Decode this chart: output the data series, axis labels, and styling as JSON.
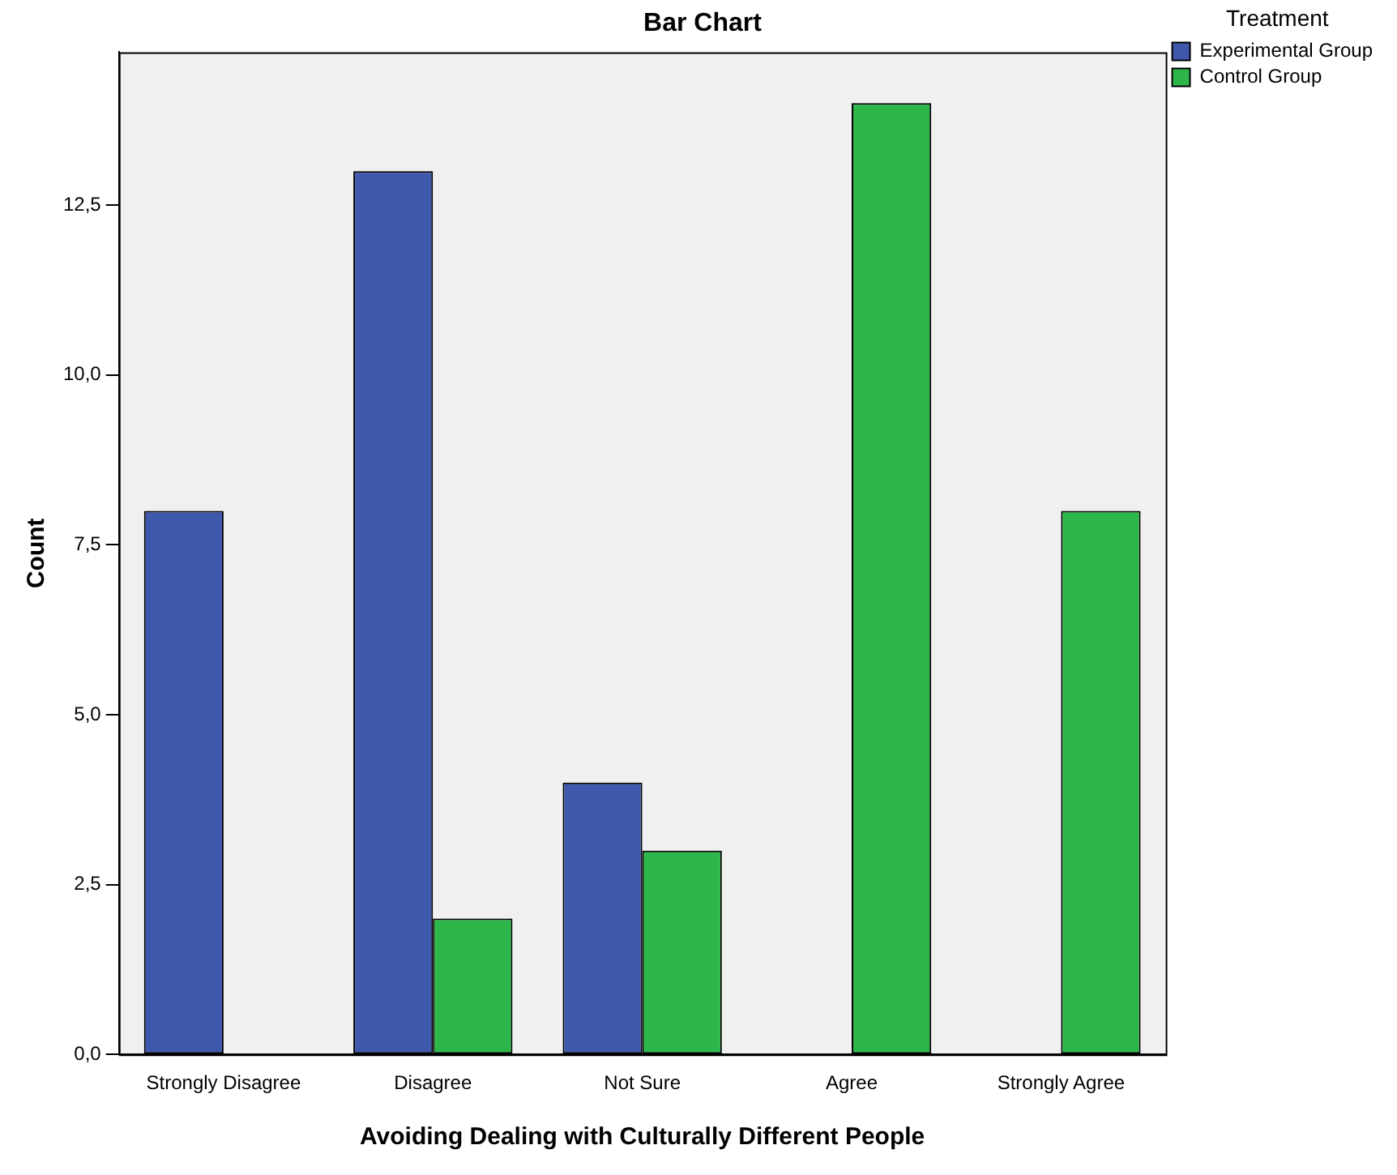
{
  "chart_data": {
    "type": "bar",
    "title": "Bar Chart",
    "xlabel": "Avoiding Dealing with Culturally Different People",
    "ylabel": "Count",
    "legend_title": "Treatment",
    "legend": "top right",
    "grid": false,
    "categories": [
      "Strongly Disagree",
      "Disagree",
      "Not Sure",
      "Agree",
      "Strongly Agree"
    ],
    "series": [
      {
        "name": "Experimental Group",
        "color": "#3e58ac",
        "values": [
          8,
          13,
          4,
          null,
          null
        ]
      },
      {
        "name": "Control Group",
        "color": "#2db74b",
        "values": [
          null,
          2,
          3,
          14,
          8
        ]
      }
    ],
    "ylim": [
      0,
      14.75
    ],
    "yticks": [
      {
        "value": 0,
        "label": "0,0"
      },
      {
        "value": 2.5,
        "label": "2,5"
      },
      {
        "value": 5,
        "label": "5,0"
      },
      {
        "value": 7.5,
        "label": "7,5"
      },
      {
        "value": 10,
        "label": "10,0"
      },
      {
        "value": 12.5,
        "label": "12,5"
      }
    ]
  }
}
